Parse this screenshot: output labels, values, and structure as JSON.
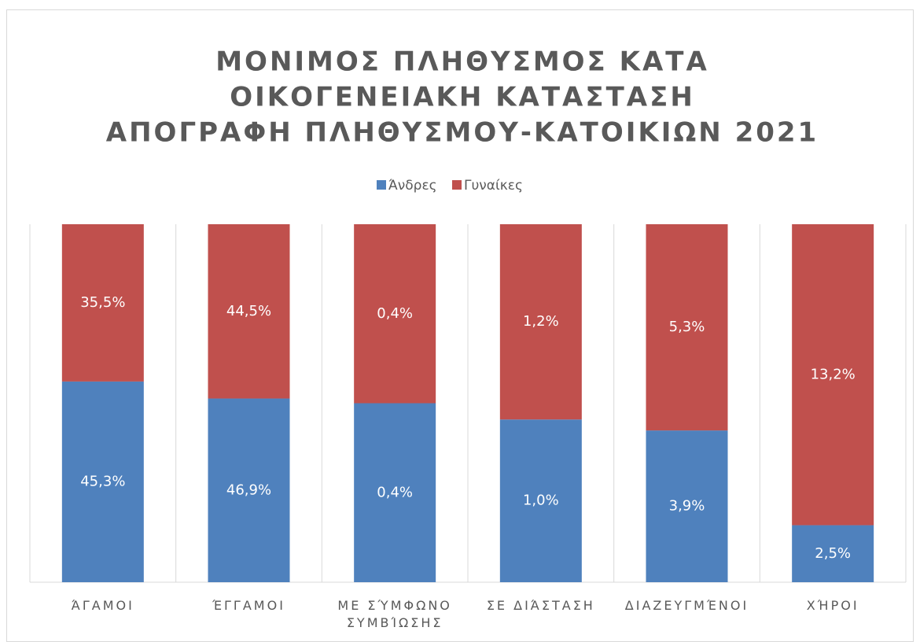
{
  "chart_data": {
    "type": "bar",
    "stacking": "percent",
    "title": [
      "ΜΟΝΙΜΟΣ ΠΛΗΘΥΣΜΟΣ ΚΑΤΑ",
      "ΟΙΚΟΓΕΝΕΙΑΚΗ ΚΑΤΑΣΤΑΣΗ",
      "ΑΠΟΓΡΑΦΗ ΠΛΗΘΥΣΜΟΥ-ΚΑΤΟΙΚΙΩΝ 2021"
    ],
    "categories": [
      "ΆΓΑΜΟΙ",
      "ΈΓΓΑΜΟΙ",
      "ΜΕ ΣΎΜΦΩΝΟ ΣΥΜΒΊΩΣΗΣ",
      "ΣΕ ΔΙΆΣΤΑΣΗ",
      "ΔΙΑΖΕΥΓΜΈΝΟΙ",
      "ΧΉΡΟΙ"
    ],
    "series": [
      {
        "name": "Άνδρες",
        "color": "#4f81bd",
        "values": [
          45.3,
          46.9,
          0.4,
          1.0,
          3.9,
          2.5
        ],
        "value_labels": [
          "45,3%",
          "46,9%",
          "0,4%",
          "1,0%",
          "3,9%",
          "2,5%"
        ]
      },
      {
        "name": "Γυναίκες",
        "color": "#c0504d",
        "values": [
          35.5,
          44.5,
          0.4,
          1.2,
          5.3,
          13.2
        ],
        "value_labels": [
          "35,5%",
          "44,5%",
          "0,4%",
          "1,2%",
          "5,3%",
          "13,2%"
        ]
      }
    ],
    "legend": "top",
    "grid": true
  }
}
